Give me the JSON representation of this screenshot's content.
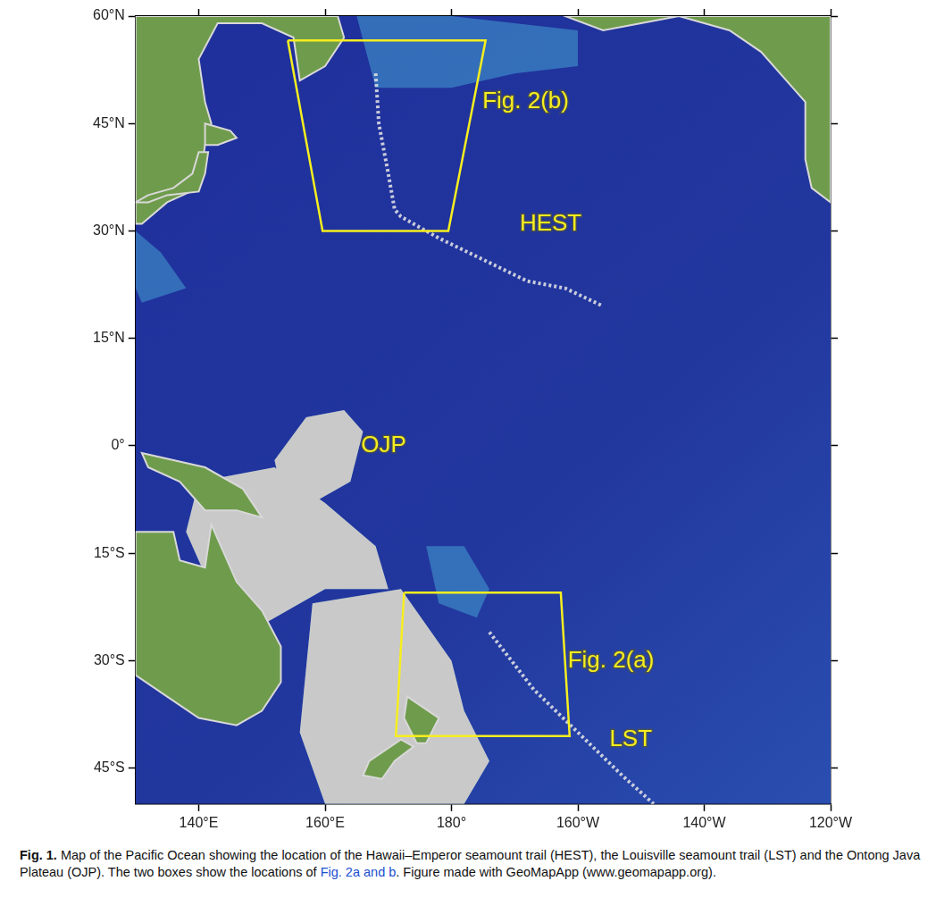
{
  "chart_data": {
    "type": "map",
    "xlim": [
      130,
      240
    ],
    "ylim": [
      -50,
      60
    ],
    "xticks": [
      {
        "value": 140,
        "label": "140°E"
      },
      {
        "value": 160,
        "label": "160°E"
      },
      {
        "value": 180,
        "label": "180°"
      },
      {
        "value": 200,
        "label": "160°W"
      },
      {
        "value": 220,
        "label": "140°W"
      },
      {
        "value": 240,
        "label": "120°W"
      }
    ],
    "yticks": [
      {
        "value": 60,
        "label": "60°N"
      },
      {
        "value": 45,
        "label": "45°N"
      },
      {
        "value": 30,
        "label": "30°N"
      },
      {
        "value": 15,
        "label": "15°N"
      },
      {
        "value": 0,
        "label": "0°"
      },
      {
        "value": -15,
        "label": "15°S"
      },
      {
        "value": -30,
        "label": "30°S"
      },
      {
        "value": -45,
        "label": "45°S"
      }
    ],
    "boxes": [
      {
        "color": "#f6ee1f",
        "lon": [
          154.1,
          185.4,
          179.5,
          159.6,
          154.1
        ],
        "lat": [
          56.6,
          56.6,
          30,
          30,
          56.6
        ]
      },
      {
        "color": "#f6ee1f",
        "lon": [
          172.5,
          197.3,
          198.7,
          171.2,
          172.5
        ],
        "lat": [
          -20.5,
          -20.5,
          -40.5,
          -40.5,
          -20.5
        ]
      }
    ],
    "annotations": [
      {
        "text": "Fig. 2(b)",
        "lon": 184.9,
        "lat": 48,
        "color": "#f6ee1f"
      },
      {
        "text": "HEST",
        "lon": 190.8,
        "lat": 31,
        "color": "#f6ee1f"
      },
      {
        "text": "OJP",
        "lon": 165.7,
        "lat": 0,
        "color": "#f6ee1f"
      },
      {
        "text": "Fig. 2(a)",
        "lon": 198.4,
        "lat": -30,
        "color": "#f6ee1f"
      },
      {
        "text": "LST",
        "lon": 205,
        "lat": -41,
        "color": "#f6ee1f"
      }
    ],
    "grid": false
  },
  "caption": {
    "label": "Fig. 1.",
    "text_before": " Map of the Pacific Ocean showing the location of the Hawaii–Emperor seamount trail (HEST), the Louisville seamount trail (LST) and the Ontong Java Plateau (OJP). The two boxes show the locations of ",
    "link": "Fig. 2a and b",
    "text_after": ". Figure made with GeoMapApp (www.geomapapp.org)."
  }
}
